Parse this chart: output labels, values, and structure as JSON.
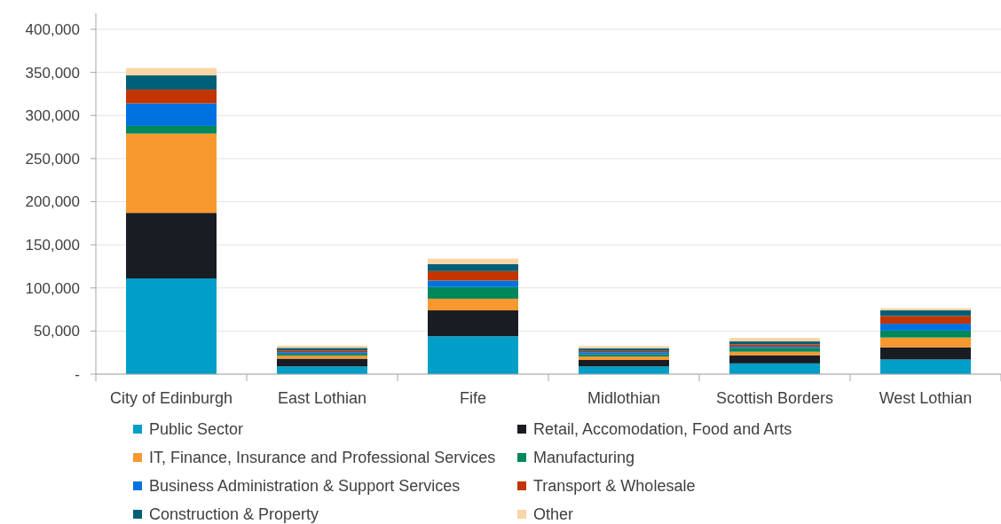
{
  "chart_data": {
    "type": "bar",
    "stacked": true,
    "categories": [
      "City of Edinburgh",
      "East Lothian",
      "Fife",
      "Midlothian",
      "Scottish Borders",
      "West Lothian"
    ],
    "series": [
      {
        "name": "Public Sector",
        "color": "#009fc8",
        "values": [
          111000,
          9000,
          44000,
          9000,
          12500,
          17000
        ]
      },
      {
        "name": "Retail, Accomodation, Food and Arts",
        "color": "#191c23",
        "values": [
          76000,
          9000,
          30000,
          7500,
          9500,
          14000
        ]
      },
      {
        "name": "IT, Finance, Insurance and Professional Services",
        "color": "#f7992e",
        "values": [
          92000,
          3500,
          13500,
          4000,
          4000,
          11500
        ]
      },
      {
        "name": "Manufacturing",
        "color": "#00885a",
        "values": [
          9000,
          2000,
          13500,
          2500,
          4500,
          8000
        ]
      },
      {
        "name": "Business Administration & Support Services",
        "color": "#0072df",
        "values": [
          26000,
          2000,
          7500,
          2500,
          1500,
          8000
        ]
      },
      {
        "name": "Transport & Wholesale",
        "color": "#c23400",
        "values": [
          16000,
          2000,
          11000,
          1500,
          2500,
          9000
        ]
      },
      {
        "name": "Construction & Property",
        "color": "#005f78",
        "values": [
          16500,
          3000,
          8000,
          3000,
          3500,
          6500
        ]
      },
      {
        "name": "Other",
        "color": "#fad5a5",
        "values": [
          8500,
          2500,
          6500,
          2500,
          4000,
          2500
        ]
      }
    ],
    "ylim": [
      0,
      400000
    ],
    "yticks": [
      {
        "value": 0,
        "label": "-"
      },
      {
        "value": 50000,
        "label": "50,000"
      },
      {
        "value": 100000,
        "label": "100,000"
      },
      {
        "value": 150000,
        "label": "150,000"
      },
      {
        "value": 200000,
        "label": "200,000"
      },
      {
        "value": 250000,
        "label": "250,000"
      },
      {
        "value": 300000,
        "label": "300,000"
      },
      {
        "value": 350000,
        "label": "350,000"
      },
      {
        "value": 400000,
        "label": "400,000"
      }
    ],
    "grid": "y",
    "legend": "bottom"
  }
}
